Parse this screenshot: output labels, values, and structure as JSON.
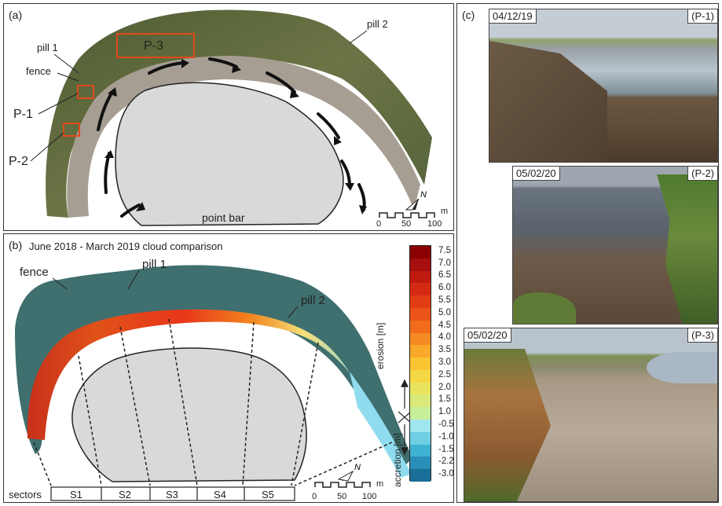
{
  "panel_a": {
    "label": "(a)",
    "labels": {
      "pill1": "pill 1",
      "pill2": "pill 2",
      "fence": "fence",
      "p1": "P-1",
      "p2": "P-2",
      "p3": "P-3",
      "point_bar": "point bar"
    },
    "scale": {
      "ticks": [
        "0",
        "50",
        "100"
      ],
      "unit": "m"
    }
  },
  "panel_b": {
    "label": "(b)",
    "title": "June 2018 - March 2019 cloud comparison",
    "labels": {
      "fence": "fence",
      "pill1": "pill 1",
      "pill2": "pill 2"
    },
    "sectors_label": "sectors",
    "sectors": [
      "S1",
      "S2",
      "S3",
      "S4",
      "S5"
    ],
    "colorbar": {
      "ticks": [
        "7.5",
        "7.0",
        "6.5",
        "6.0",
        "5.5",
        "5.0",
        "4.5",
        "4.0",
        "3.5",
        "3.0",
        "2.5",
        "2.0",
        "1.5",
        "1.0",
        "-0.5",
        "-1.0",
        "-1.5",
        "-2.2",
        "-3.0"
      ],
      "erosion_label": "erosion [m]",
      "accretion_label": "accretion [m]",
      "colors": [
        "#8b0000",
        "#a50f0f",
        "#c01a10",
        "#d42a12",
        "#e23c14",
        "#ec5318",
        "#f26c1c",
        "#f68a22",
        "#f9a82a",
        "#fbc433",
        "#f4d845",
        "#e8e45e",
        "#d9ea7a",
        "#c8ef9a",
        "#9fe6ee",
        "#6fd0e4",
        "#3fb2d2",
        "#2a8fb8",
        "#1a6f98"
      ]
    },
    "scale": {
      "ticks": [
        "0",
        "50",
        "100"
      ],
      "unit": "m"
    }
  },
  "panel_c": {
    "label": "(c)",
    "photos": [
      {
        "date": "04/12/19",
        "id": "(P-1)"
      },
      {
        "date": "05/02/20",
        "id": "(P-2)"
      },
      {
        "date": "05/02/20",
        "id": "(P-3)"
      }
    ]
  },
  "colors": {
    "point_bar": "#d9d9d9",
    "marker": "#e04a1a",
    "vegetation": "#5f6b3a",
    "water": "#b8c6cf"
  }
}
